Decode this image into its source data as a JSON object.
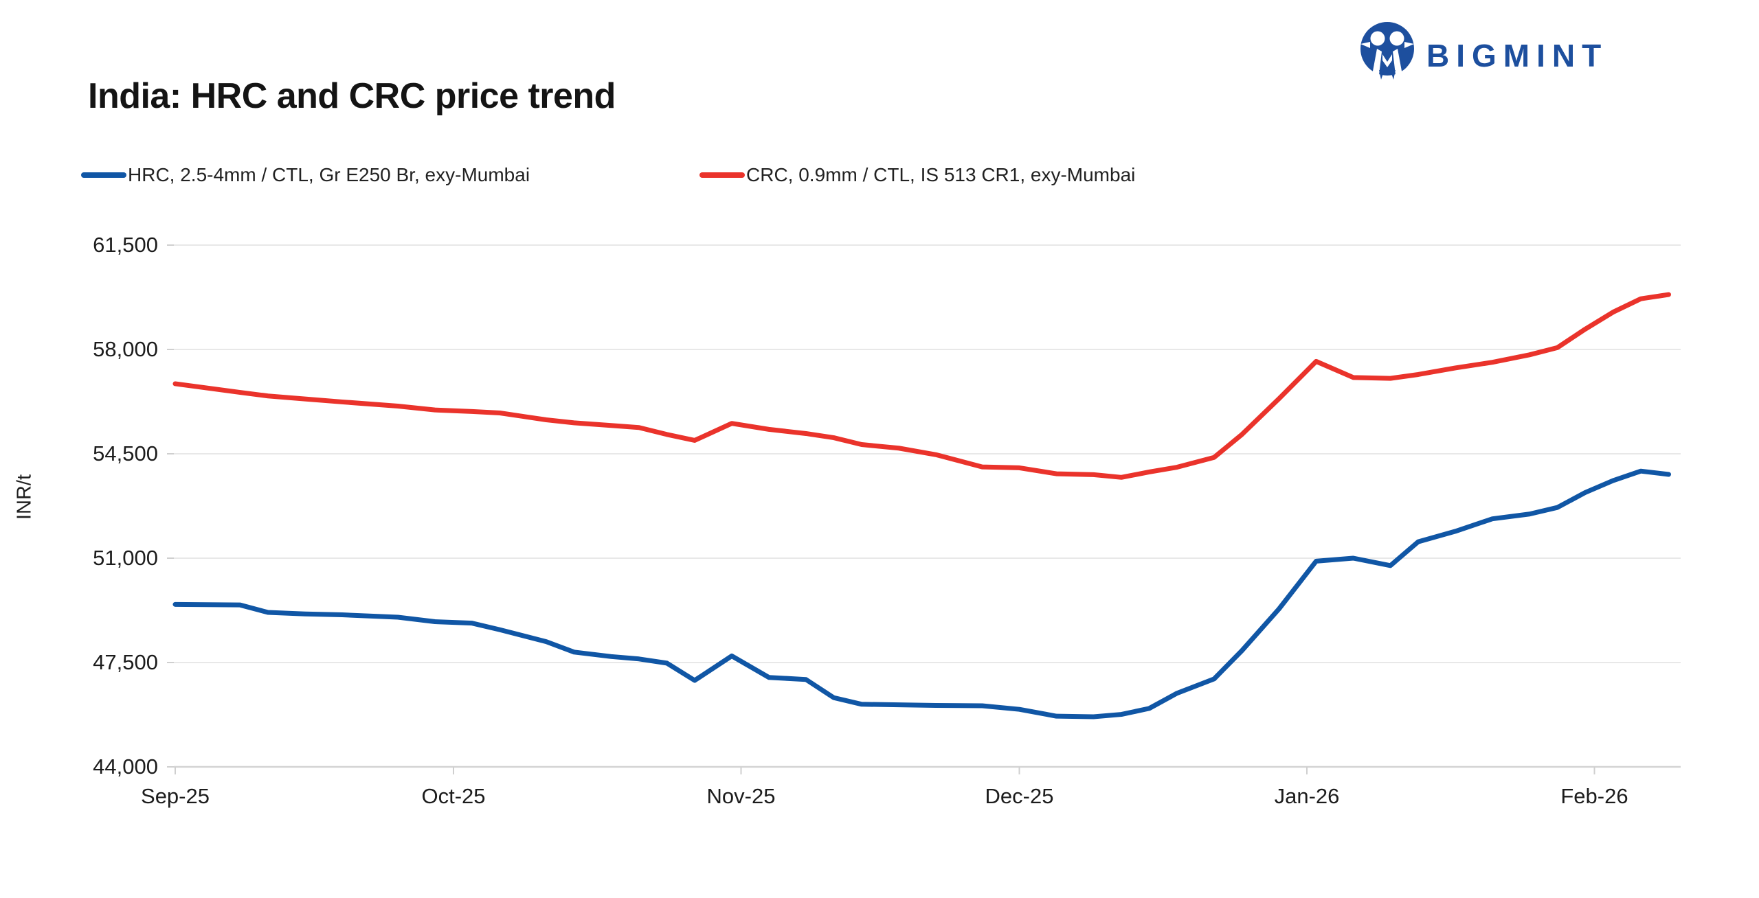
{
  "header": {
    "title": "India: HRC and CRC price trend"
  },
  "brand": {
    "name": "BIGMINT",
    "color": "#1d4f9e"
  },
  "legend": [
    {
      "label": "HRC, 2.5-4mm / CTL, Gr E250 Br, exy-Mumbai",
      "color": "#1056a5"
    },
    {
      "label": "CRC, 0.9mm / CTL, IS 513 CR1, exy-Mumbai",
      "color": "#ea332b"
    }
  ],
  "chart_data": {
    "type": "line",
    "title": "India: HRC and CRC price trend",
    "xlabel": "",
    "ylabel": "INR/t",
    "ylim": [
      44000,
      61500
    ],
    "y_ticks": [
      44000,
      47500,
      51000,
      54500,
      58000,
      61500
    ],
    "y_tick_labels": [
      "44,000",
      "47,500",
      "51,000",
      "54,500",
      "58,000",
      "61,500"
    ],
    "x_tick_labels": [
      "Sep-25",
      "Oct-25",
      "Nov-25",
      "Dec-25",
      "Jan-26",
      "Feb-26"
    ],
    "x_tick_days": [
      0,
      30,
      61,
      91,
      122,
      153
    ],
    "x_span_days": 161,
    "grid": true,
    "legend_position": "top",
    "days": [
      0,
      7,
      10,
      14,
      18,
      24,
      28,
      32,
      35,
      40,
      43,
      47,
      50,
      53,
      56,
      60,
      64,
      68,
      71,
      74,
      78,
      82,
      87,
      91,
      95,
      99,
      102,
      105,
      108,
      112,
      115,
      119,
      123,
      127,
      131,
      134,
      138,
      142,
      146,
      149,
      152,
      155,
      158,
      161
    ],
    "series": [
      {
        "name": "HRC, 2.5-4mm / CTL, Gr E250 Br, exy-Mumbai",
        "color": "#1056a5",
        "values": [
          49450,
          49430,
          49180,
          49130,
          49100,
          49020,
          48870,
          48820,
          48600,
          48200,
          47850,
          47700,
          47620,
          47480,
          46900,
          47720,
          47000,
          46930,
          46320,
          46100,
          46080,
          46060,
          46050,
          45930,
          45700,
          45680,
          45760,
          45960,
          46470,
          46950,
          47900,
          49300,
          50900,
          51000,
          50750,
          51550,
          51900,
          52320,
          52480,
          52700,
          53200,
          53600,
          53920,
          53810
        ]
      },
      {
        "name": "CRC, 0.9mm / CTL, IS 513 CR1, exy-Mumbai",
        "color": "#ea332b",
        "values": [
          56850,
          56560,
          56440,
          56340,
          56240,
          56100,
          55970,
          55920,
          55870,
          55640,
          55540,
          55450,
          55380,
          55150,
          54950,
          55520,
          55320,
          55180,
          55040,
          54810,
          54690,
          54470,
          54060,
          54030,
          53830,
          53800,
          53710,
          53890,
          54050,
          54380,
          55150,
          56350,
          57600,
          57060,
          57030,
          57160,
          57380,
          57570,
          57820,
          58060,
          58680,
          59250,
          59700,
          59840
        ]
      }
    ]
  }
}
